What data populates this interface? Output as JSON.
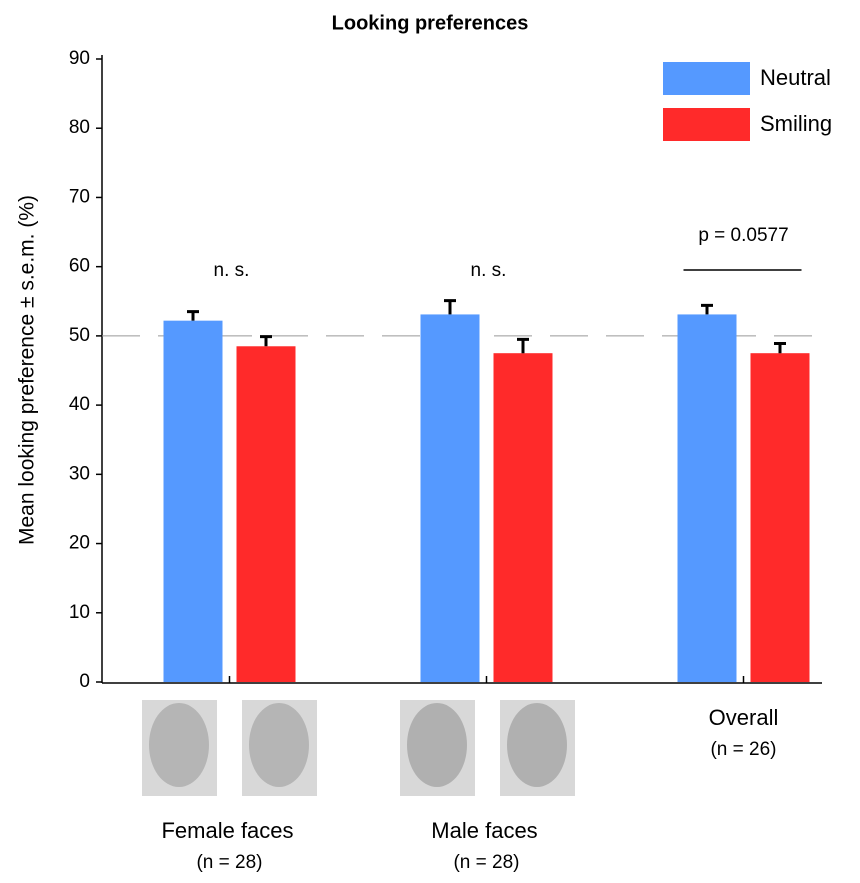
{
  "chart_data": {
    "type": "bar",
    "title": "Looking preferences",
    "y_label": "Mean looking preference ± s.e.m. (%)",
    "categories": [
      "Female faces",
      "Male faces",
      "Overall"
    ],
    "sample_sizes": [
      "(n = 28)",
      "(n = 28)",
      "(n = 26)"
    ],
    "series": [
      {
        "name": "Neutral",
        "color": "#5599ff",
        "values": [
          52.2,
          53.1,
          53.1
        ],
        "errors": [
          1.3,
          2.0,
          1.3
        ]
      },
      {
        "name": "Smiling",
        "color": "#ff2a2a",
        "values": [
          48.5,
          47.5,
          47.5
        ],
        "errors": [
          1.4,
          2.0,
          1.4
        ]
      }
    ],
    "reference_line": 50,
    "annotations": [
      "n. s.",
      "n. s.",
      "p = 0.0577"
    ],
    "ylim": [
      0,
      90
    ],
    "yticks": [
      0,
      10,
      20,
      30,
      40,
      50,
      60,
      70,
      80,
      90
    ],
    "legend": "top-right"
  }
}
